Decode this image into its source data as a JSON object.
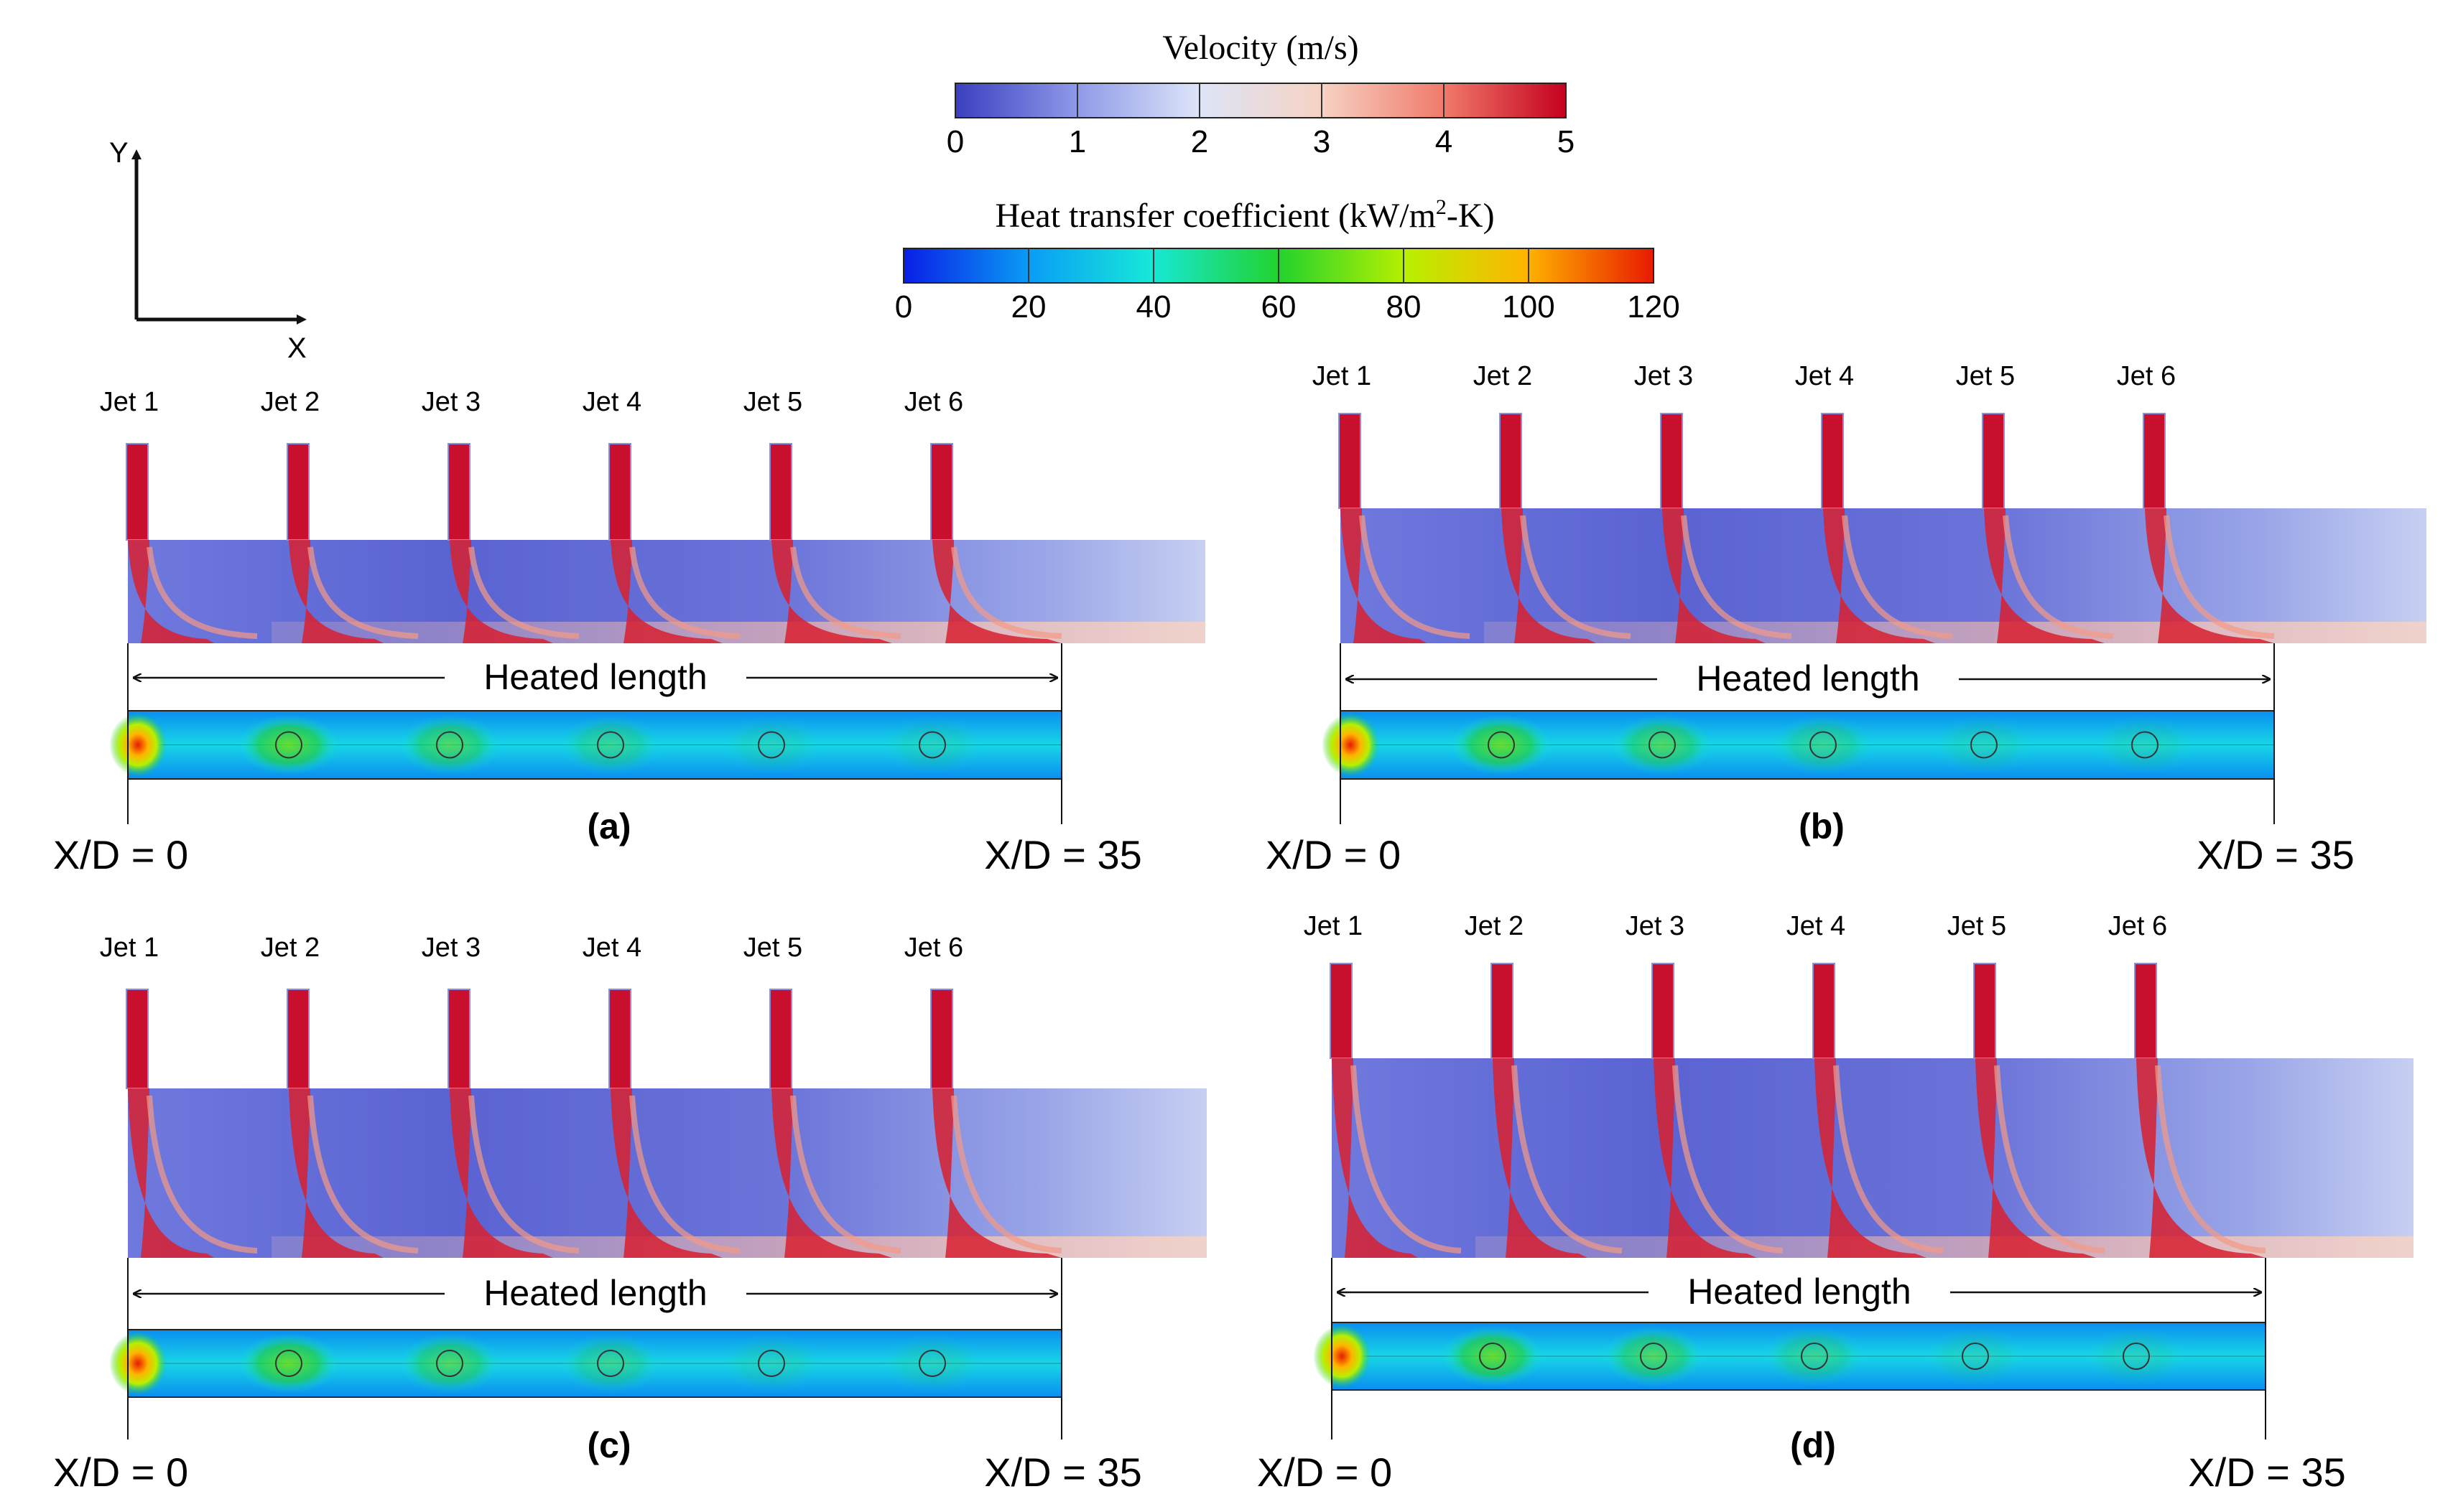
{
  "colorbars": {
    "velocity": {
      "title": "Velocity  (m/s)",
      "ticks": [
        "0",
        "1",
        "2",
        "3",
        "4",
        "5"
      ],
      "colors": [
        "#3b3fc0",
        "#8e9ae8",
        "#dde5f8",
        "#f6d2c3",
        "#f07a6a",
        "#c5001f"
      ]
    },
    "htc": {
      "title_main": "Heat transfer  coefficient  (kW/m",
      "title_sup": "2",
      "title_tail": "-K)",
      "ticks": [
        "0",
        "20",
        "40",
        "60",
        "80",
        "100",
        "120"
      ],
      "colors": [
        "#0a1ee6",
        "#0a9ef5",
        "#16e8d8",
        "#22d22e",
        "#b8f000",
        "#ffb400",
        "#e81a00"
      ]
    }
  },
  "axes": {
    "y_label": "Y",
    "x_label": "X"
  },
  "heated_label": "Heated length",
  "xd_start": "X/D = 0",
  "xd_end": "X/D = 35",
  "jets": [
    "Jet 1",
    "Jet 2",
    "Jet 3",
    "Jet 4",
    "Jet 5",
    "Jet 6"
  ],
  "panels": [
    {
      "id": "a",
      "label": "(a)"
    },
    {
      "id": "b",
      "label": "(b)"
    },
    {
      "id": "c",
      "label": "(c)"
    },
    {
      "id": "d",
      "label": "(d)"
    }
  ]
}
